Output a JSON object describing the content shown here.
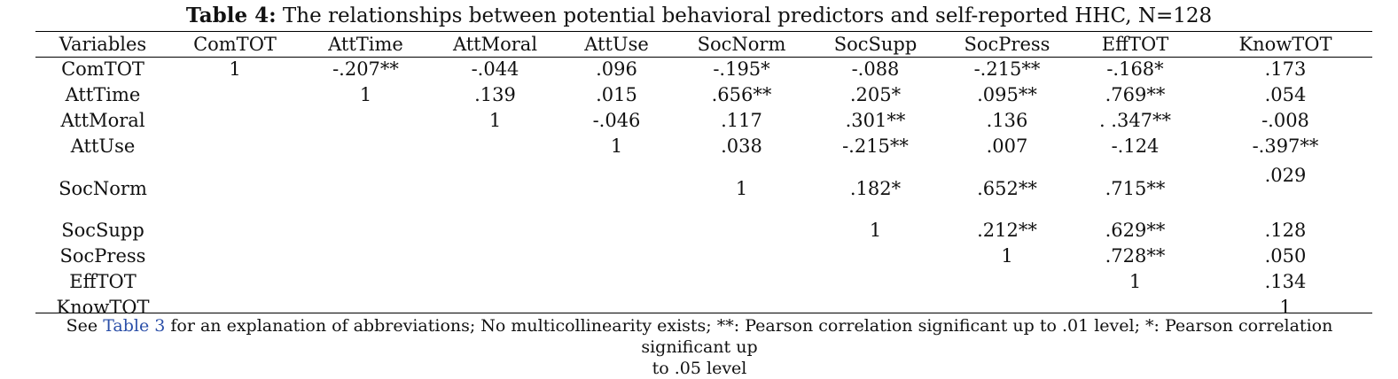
{
  "caption": {
    "label": "Table 4:",
    "text": " The relationships between potential behavioral predictors and self-reported HHC, N=128"
  },
  "header": [
    "Variables",
    "ComTOT",
    "AttTime",
    "AttMoral",
    "AttUse",
    "SocNorm",
    "SocSupp",
    "SocPress",
    "EffTOT",
    "KnowTOT"
  ],
  "rows": [
    [
      "ComTOT",
      "1",
      "-.207**",
      "-.044",
      ".096",
      "-.195*",
      "-.088",
      "-.215**",
      "-.168*",
      ".173"
    ],
    [
      "AttTime",
      "",
      "1",
      ".139",
      ".015",
      ".656**",
      ".205*",
      ".095**",
      ".769**",
      ".054"
    ],
    [
      "AttMoral",
      "",
      "",
      "1",
      "-.046",
      ".117",
      ".301**",
      ".136",
      ". .347**",
      "-.008"
    ],
    [
      "AttUse",
      "",
      "",
      "",
      "1",
      ".038",
      "-.215**",
      ".007",
      "-.124",
      "-.397**"
    ],
    [
      "SocNorm",
      "",
      "",
      "",
      "",
      "1",
      ".182*",
      ".652**",
      ".715**",
      ".029"
    ],
    [
      "SocSupp",
      "",
      "",
      "",
      "",
      "",
      "1",
      ".212**",
      ".629**",
      ".128"
    ],
    [
      "SocPress",
      "",
      "",
      "",
      "",
      "",
      "",
      "1",
      ".728**",
      ".050"
    ],
    [
      "EffTOT",
      "",
      "",
      "",
      "",
      "",
      "",
      "",
      "1",
      ".134"
    ],
    [
      "KnowTOT",
      "",
      "",
      "",
      "",
      "",
      "",
      "",
      "",
      "1"
    ]
  ],
  "footnote": {
    "prefix": "See ",
    "link": "Table 3",
    "line1_rest": " for an explanation of abbreviations; No multicollinearity exists; **: Pearson correlation significant up to .01 level; *: Pearson correlation significant up",
    "line2": "to .05 level"
  }
}
